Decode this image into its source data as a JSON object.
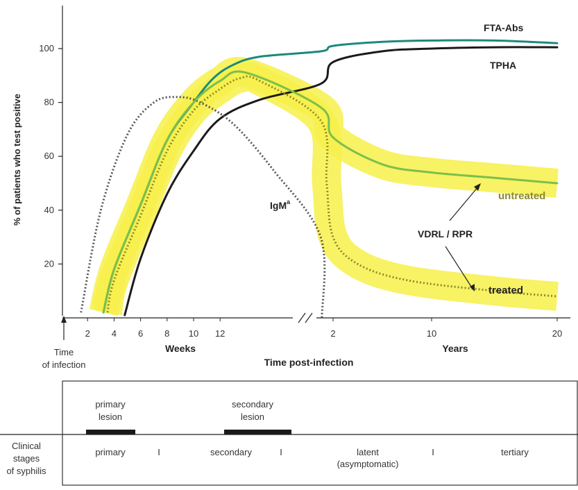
{
  "chart_data": {
    "type": "line",
    "title": "",
    "ylabel": "% of patients who test positive",
    "xlabel": "Time post-infection",
    "ylim": [
      0,
      115
    ],
    "y_ticks": [
      "20",
      "40",
      "60",
      "80",
      "100"
    ],
    "x_weeks": {
      "unit_label": "Weeks",
      "ticks": [
        "2",
        "4",
        "6",
        "8",
        "10",
        "12"
      ]
    },
    "x_years": {
      "unit_label": "Years",
      "ticks": [
        "2",
        "10",
        "20"
      ]
    },
    "origin_label": [
      "Time",
      "of infection"
    ],
    "series": [
      {
        "name": "FTA-Abs",
        "color": "#1a8a7a",
        "style": "solid",
        "points": [
          [
            "3.2w",
            2
          ],
          [
            "4w",
            18
          ],
          [
            "6w",
            42
          ],
          [
            "8w",
            66
          ],
          [
            "10w",
            80
          ],
          [
            "11.5w",
            89
          ],
          [
            "13w",
            94
          ],
          [
            "15w",
            97
          ],
          [
            "0.5y",
            99
          ],
          [
            "2y",
            101
          ],
          [
            "6y",
            102.5
          ],
          [
            "10y",
            103
          ],
          [
            "15y",
            103
          ],
          [
            "20y",
            102
          ]
        ]
      },
      {
        "name": "TPHA",
        "color": "#1a1a1a",
        "style": "solid",
        "points": [
          [
            "4.8w",
            1
          ],
          [
            "6w",
            22
          ],
          [
            "8w",
            46
          ],
          [
            "10w",
            62
          ],
          [
            "12w",
            74
          ],
          [
            "15w",
            81
          ],
          [
            "0.5y",
            87
          ],
          [
            "2y",
            95
          ],
          [
            "6y",
            99
          ],
          [
            "10y",
            100
          ],
          [
            "15y",
            100.5
          ],
          [
            "20y",
            100.5
          ]
        ]
      },
      {
        "name": "IgM",
        "label": "IgM",
        "superscript": "a",
        "color": "#555555",
        "style": "dotted",
        "points": [
          [
            "1.5w",
            2
          ],
          [
            "3w",
            40
          ],
          [
            "5w",
            68
          ],
          [
            "7w",
            80
          ],
          [
            "8.8w",
            82
          ],
          [
            "10.5w",
            80
          ],
          [
            "13w",
            72
          ],
          [
            "16w",
            55
          ],
          [
            "0.45y",
            30
          ],
          [
            "0.6y",
            0
          ]
        ]
      },
      {
        "name": "VDRL / RPR untreated",
        "label": "untreated",
        "color": "#7cbf4a",
        "style": "solid",
        "points": [
          [
            "3.2w",
            2
          ],
          [
            "4w",
            18
          ],
          [
            "6w",
            42
          ],
          [
            "8w",
            66
          ],
          [
            "10w",
            80
          ],
          [
            "12w",
            88
          ],
          [
            "14w",
            91
          ],
          [
            "0.55y",
            78
          ],
          [
            "2y",
            67
          ],
          [
            "6y",
            57
          ],
          [
            "10y",
            54
          ],
          [
            "15y",
            52
          ],
          [
            "20y",
            50
          ]
        ]
      },
      {
        "name": "VDRL / RPR treated",
        "label": "treated",
        "color": "#8a8a2a",
        "style": "dotted",
        "points": [
          [
            "3.5w",
            2
          ],
          [
            "4w",
            14
          ],
          [
            "6w",
            38
          ],
          [
            "8w",
            62
          ],
          [
            "10w",
            77
          ],
          [
            "12w",
            85
          ],
          [
            "13.5w",
            89
          ],
          [
            "15w",
            88
          ],
          [
            "0.52y",
            73
          ],
          [
            "1.2y",
            50
          ],
          [
            "2y",
            30
          ],
          [
            "4y",
            20
          ],
          [
            "8y",
            14
          ],
          [
            "15y",
            10
          ],
          [
            "20y",
            8
          ]
        ]
      }
    ],
    "highlight": {
      "color": "#f7f04a",
      "note": ""
    },
    "annotations": {
      "vdrl_label": "VDRL / RPR"
    }
  },
  "clinical": {
    "row_label": [
      "Clinical",
      "stages",
      "of syphilis"
    ],
    "lesions": [
      {
        "label": [
          "primary",
          "lesion"
        ],
        "start": "2w",
        "end": "6w"
      },
      {
        "label": [
          "secondary",
          "lesion"
        ],
        "start": "15w",
        "end": "0.6y"
      }
    ],
    "stages": [
      "primary",
      "secondary",
      "latent",
      "tertiary"
    ],
    "stage_sub": "(asymptomatic)",
    "separator": "I"
  }
}
